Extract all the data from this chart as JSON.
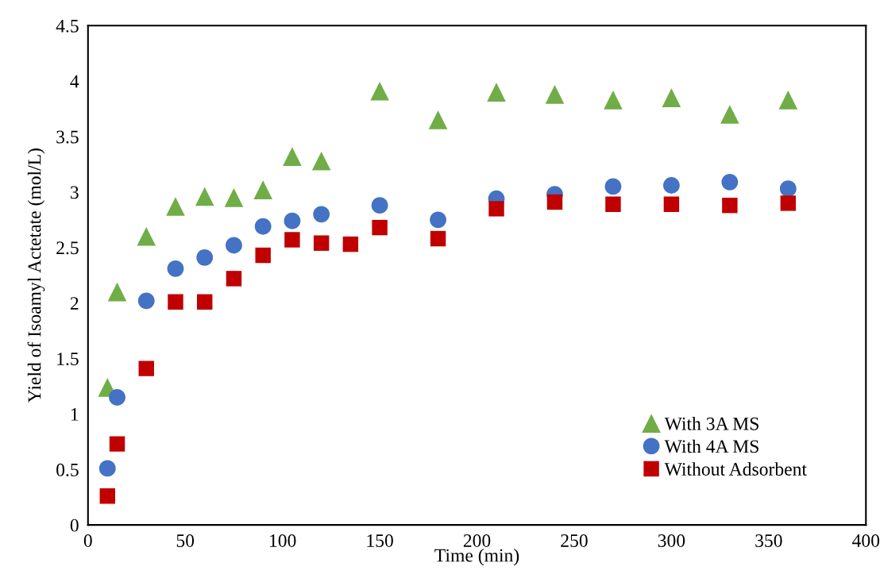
{
  "chart_data": {
    "type": "scatter",
    "xlabel": "Time (min)",
    "ylabel": "Yield of Isoamyl Actetate (mol/L)",
    "xlim": [
      0,
      400
    ],
    "xticks": [
      0,
      50,
      100,
      150,
      200,
      250,
      300,
      350,
      400
    ],
    "ylim": [
      0,
      4.5
    ],
    "yticks": [
      0,
      0.5,
      1,
      1.5,
      2,
      2.5,
      3,
      3.5,
      4,
      4.5
    ],
    "grid": false,
    "legend": "bottom right",
    "series": [
      {
        "name": "With 3A MS",
        "color": "#70ad47",
        "marker": "triangle",
        "x": [
          10,
          15,
          30,
          45,
          60,
          75,
          90,
          105,
          120,
          150,
          180,
          210,
          240,
          270,
          300,
          330,
          360
        ],
        "values": [
          1.24,
          2.1,
          2.6,
          2.87,
          2.96,
          2.95,
          3.02,
          3.32,
          3.28,
          3.91,
          3.65,
          3.9,
          3.88,
          3.83,
          3.85,
          3.7,
          3.83
        ]
      },
      {
        "name": "With 4A MS",
        "color": "#4472c4",
        "marker": "circle",
        "x": [
          10,
          15,
          30,
          45,
          60,
          75,
          90,
          105,
          120,
          150,
          180,
          210,
          240,
          270,
          300,
          330,
          360
        ],
        "values": [
          0.51,
          1.15,
          2.02,
          2.31,
          2.41,
          2.52,
          2.69,
          2.74,
          2.8,
          2.88,
          2.75,
          2.94,
          2.98,
          3.05,
          3.06,
          3.09,
          3.03
        ]
      },
      {
        "name": "Without Adsorbent",
        "color": "#c00000",
        "marker": "square",
        "x": [
          10,
          15,
          30,
          45,
          60,
          75,
          90,
          105,
          120,
          135,
          150,
          180,
          210,
          240,
          270,
          300,
          330,
          360
        ],
        "values": [
          0.26,
          0.73,
          1.41,
          2.01,
          2.01,
          2.22,
          2.43,
          2.57,
          2.54,
          2.53,
          2.68,
          2.58,
          2.85,
          2.91,
          2.89,
          2.89,
          2.88,
          2.9
        ]
      }
    ]
  }
}
